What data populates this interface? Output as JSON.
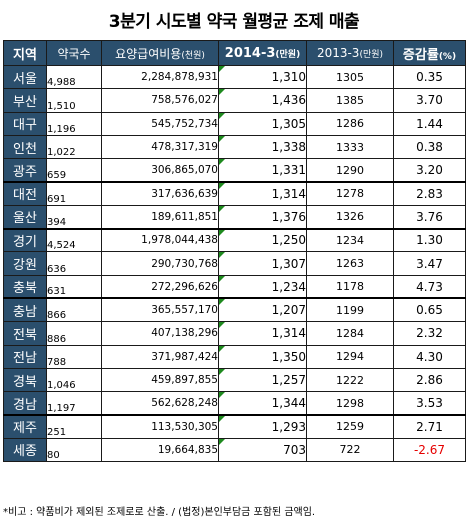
{
  "title": "3분기 시도별 약국 월평균 조제 매출",
  "table": {
    "headers": {
      "region": "지역",
      "stores": "약국수",
      "benefit": "요양급여비용",
      "benefit_unit": "(천원)",
      "avg2014": "2014-3",
      "avg2014_unit": "(만원)",
      "avg2013": "2013-3",
      "avg2013_unit": "(만원)",
      "rate": "증감률",
      "rate_unit": "(%)"
    },
    "rows": [
      {
        "region": "서울",
        "stores": "4,988",
        "benefit": "2,284,878,931",
        "avg2014": "1,310",
        "avg2013": "1305",
        "rate": "0.35"
      },
      {
        "region": "부산",
        "stores": "1,510",
        "benefit": "758,576,027",
        "avg2014": "1,436",
        "avg2013": "1385",
        "rate": "3.70"
      },
      {
        "region": "대구",
        "stores": "1,196",
        "benefit": "545,752,734",
        "avg2014": "1,305",
        "avg2013": "1286",
        "rate": "1.44"
      },
      {
        "region": "인천",
        "stores": "1,022",
        "benefit": "478,317,319",
        "avg2014": "1,338",
        "avg2013": "1333",
        "rate": "0.38"
      },
      {
        "region": "광주",
        "stores": "659",
        "benefit": "306,865,070",
        "avg2014": "1,331",
        "avg2013": "1290",
        "rate": "3.20"
      },
      {
        "region": "대전",
        "stores": "691",
        "benefit": "317,636,639",
        "avg2014": "1,314",
        "avg2013": "1278",
        "rate": "2.83"
      },
      {
        "region": "울산",
        "stores": "394",
        "benefit": "189,611,851",
        "avg2014": "1,376",
        "avg2013": "1326",
        "rate": "3.76"
      },
      {
        "region": "경기",
        "stores": "4,524",
        "benefit": "1,978,044,438",
        "avg2014": "1,250",
        "avg2013": "1234",
        "rate": "1.30"
      },
      {
        "region": "강원",
        "stores": "636",
        "benefit": "290,730,768",
        "avg2014": "1,307",
        "avg2013": "1263",
        "rate": "3.47"
      },
      {
        "region": "충북",
        "stores": "631",
        "benefit": "272,296,626",
        "avg2014": "1,234",
        "avg2013": "1178",
        "rate": "4.73"
      },
      {
        "region": "충남",
        "stores": "866",
        "benefit": "365,557,170",
        "avg2014": "1,207",
        "avg2013": "1199",
        "rate": "0.65"
      },
      {
        "region": "전북",
        "stores": "886",
        "benefit": "407,138,296",
        "avg2014": "1,314",
        "avg2013": "1284",
        "rate": "2.32"
      },
      {
        "region": "전남",
        "stores": "788",
        "benefit": "371,987,424",
        "avg2014": "1,350",
        "avg2013": "1294",
        "rate": "4.30"
      },
      {
        "region": "경북",
        "stores": "1,046",
        "benefit": "459,897,855",
        "avg2014": "1,257",
        "avg2013": "1222",
        "rate": "2.86"
      },
      {
        "region": "경남",
        "stores": "1,197",
        "benefit": "562,628,248",
        "avg2014": "1,344",
        "avg2013": "1298",
        "rate": "3.53"
      },
      {
        "region": "제주",
        "stores": "251",
        "benefit": "113,530,305",
        "avg2014": "1,293",
        "avg2013": "1259",
        "rate": "2.71"
      },
      {
        "region": "세종",
        "stores": "80",
        "benefit": "19,664,835",
        "avg2014": "703",
        "avg2013": "722",
        "rate": "-2.67"
      }
    ]
  },
  "note": "*비고 : 약품비가 제외된 조제로로 산출. / (법정)본인부담금 포함된 금액임.",
  "colors": {
    "header_bg": "#2b4f6d",
    "header_text": "#ffffff",
    "negative": "#e60000",
    "cell_marker": "#1e8a1e"
  }
}
